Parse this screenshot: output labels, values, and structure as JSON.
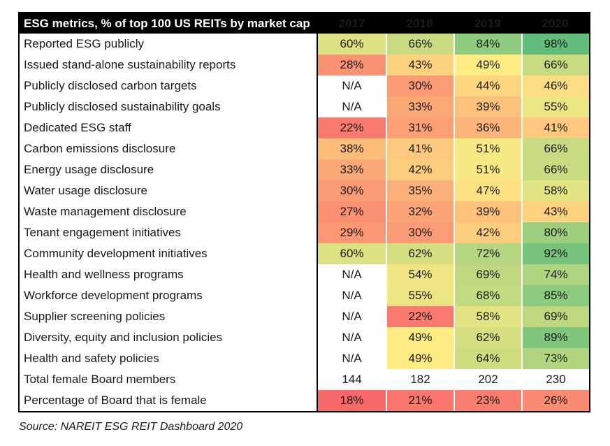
{
  "chart_data": {
    "type": "heatmap",
    "title": "ESG metrics, % of top 100 US REITs by market cap",
    "columns": [
      "2017",
      "2018",
      "2019",
      "2020"
    ],
    "rows": [
      {
        "label": "Reported ESG publicly",
        "values": [
          "60%",
          "66%",
          "84%",
          "98%"
        ],
        "colors": [
          "#DCE182",
          "#C9DB81",
          "#8FCB7E",
          "#63BE7B"
        ]
      },
      {
        "label": "Issued stand-alone sustainability reports",
        "values": [
          "28%",
          "43%",
          "49%",
          "66%"
        ],
        "colors": [
          "#FA9373",
          "#FDD27F",
          "#FFEB84",
          "#C9DB81"
        ]
      },
      {
        "label": "Publicly disclosed carbon targets",
        "values": [
          "N/A",
          "30%",
          "44%",
          "46%"
        ],
        "colors": [
          "#FFFFFF",
          "#FB9B75",
          "#FED680",
          "#FEDE82"
        ]
      },
      {
        "label": "Publicly disclosed sustainability goals",
        "values": [
          "N/A",
          "33%",
          "39%",
          "55%"
        ],
        "colors": [
          "#FFFFFF",
          "#FBA877",
          "#FDC17C",
          "#ECE583"
        ]
      },
      {
        "label": "Dedicated ESG staff",
        "values": [
          "22%",
          "31%",
          "36%",
          "41%"
        ],
        "colors": [
          "#F97A6E",
          "#FB9F75",
          "#FCB479",
          "#FDC97E"
        ]
      },
      {
        "label": "Carbon emissions disclosure",
        "values": [
          "38%",
          "41%",
          "51%",
          "66%"
        ],
        "colors": [
          "#FCBD7B",
          "#FDC97E",
          "#F9E984",
          "#C9DB81"
        ]
      },
      {
        "label": "Energy usage disclosure",
        "values": [
          "33%",
          "42%",
          "51%",
          "66%"
        ],
        "colors": [
          "#FBA877",
          "#FDCD7E",
          "#F9E984",
          "#C9DB81"
        ]
      },
      {
        "label": "Water usage disclosure",
        "values": [
          "30%",
          "35%",
          "47%",
          "58%"
        ],
        "colors": [
          "#FB9B75",
          "#FCB079",
          "#FEE282",
          "#E2E382"
        ]
      },
      {
        "label": "Waste management disclosure",
        "values": [
          "27%",
          "32%",
          "39%",
          "43%"
        ],
        "colors": [
          "#FA8F72",
          "#FBA476",
          "#FDC17C",
          "#FDD27F"
        ]
      },
      {
        "label": "Tenant engagement initiatives",
        "values": [
          "29%",
          "30%",
          "42%",
          "80%"
        ],
        "colors": [
          "#FB9774",
          "#FB9B75",
          "#FDCD7E",
          "#9CCE7E"
        ]
      },
      {
        "label": "Community development initiatives",
        "values": [
          "60%",
          "62%",
          "72%",
          "92%"
        ],
        "colors": [
          "#DCE182",
          "#D5DF82",
          "#B5D580",
          "#76C37C"
        ]
      },
      {
        "label": "Health and wellness programs",
        "values": [
          "N/A",
          "54%",
          "69%",
          "74%"
        ],
        "colors": [
          "#FFFFFF",
          "#EFE683",
          "#BFD880",
          "#AFD47F"
        ]
      },
      {
        "label": "Workforce development programs",
        "values": [
          "N/A",
          "55%",
          "68%",
          "85%"
        ],
        "colors": [
          "#FFFFFF",
          "#ECE583",
          "#C2DA80",
          "#8CCA7D"
        ]
      },
      {
        "label": "Supplier screening policies",
        "values": [
          "N/A",
          "22%",
          "58%",
          "69%"
        ],
        "colors": [
          "#FFFFFF",
          "#F97A6E",
          "#E2E382",
          "#BFD880"
        ]
      },
      {
        "label": "Diversity, equity and inclusion policies",
        "values": [
          "N/A",
          "49%",
          "62%",
          "89%"
        ],
        "colors": [
          "#FFFFFF",
          "#FFEB84",
          "#D5DF82",
          "#80C67C"
        ]
      },
      {
        "label": "Health and safety policies",
        "values": [
          "N/A",
          "49%",
          "64%",
          "73%"
        ],
        "colors": [
          "#FFFFFF",
          "#FFEB84",
          "#CFDD81",
          "#B3D57F"
        ]
      },
      {
        "label": "Total female Board members",
        "values": [
          "144",
          "182",
          "202",
          "230"
        ],
        "colors": [
          "#FFFFFF",
          "#FFFFFF",
          "#FFFFFF",
          "#FFFFFF"
        ]
      },
      {
        "label": "Percentage of Board that is female",
        "values": [
          "18%",
          "21%",
          "23%",
          "26%"
        ],
        "colors": [
          "#F8696B",
          "#F9756D",
          "#F97E6F",
          "#FA8A72"
        ]
      }
    ],
    "color_scale": {
      "min_color": "#F8696B",
      "mid_color": "#FFEB84",
      "max_color": "#63BE7B"
    },
    "header_bg": "#000000",
    "header_text_color": "#FFFFFF",
    "source": "Source: NAREIT ESG REIT Dashboard 2020"
  }
}
